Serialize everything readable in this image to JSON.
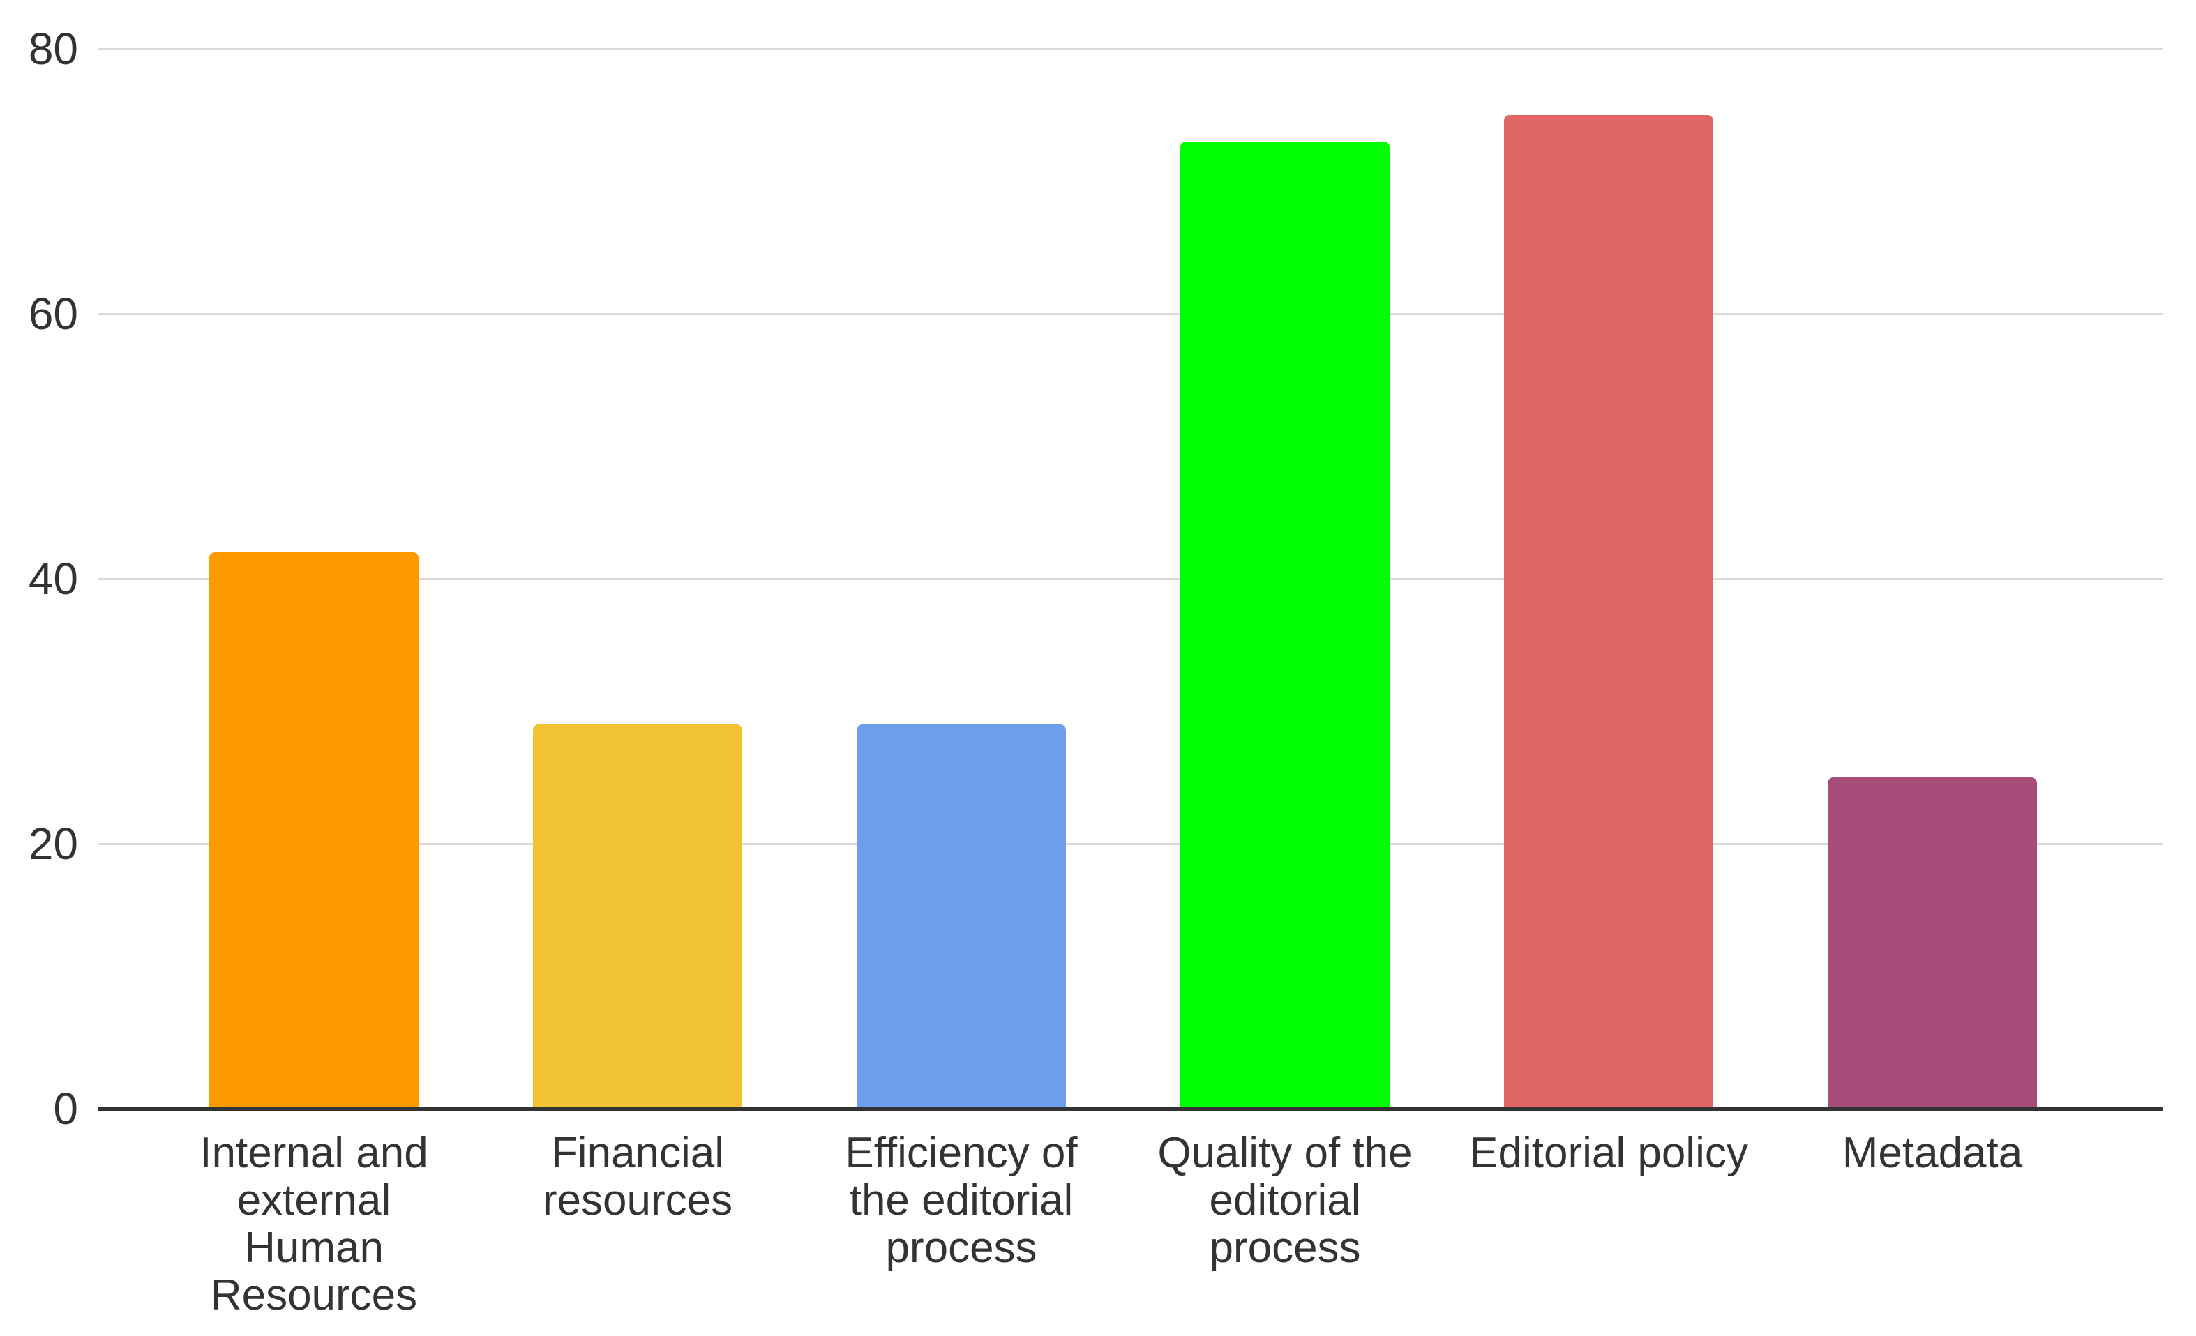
{
  "chart_data": {
    "type": "bar",
    "categories": [
      "Internal and external Human Resources",
      "Financial resources",
      "Efficiency of the editorial process",
      "Quality of the editorial process",
      "Editorial policy",
      "Metadata"
    ],
    "categories_wrapped": [
      [
        "Internal and",
        "external",
        "Human",
        "Resources"
      ],
      [
        "Financial",
        "resources"
      ],
      [
        "Efficiency of",
        "the editorial",
        "process"
      ],
      [
        "Quality of the",
        "editorial",
        "process"
      ],
      [
        "Editorial policy"
      ],
      [
        "Metadata"
      ]
    ],
    "values": [
      42,
      29,
      29,
      73,
      75,
      25
    ],
    "bar_colors": [
      "#FF9900",
      "#F1C232",
      "#6D9EEB",
      "#00FF00",
      "#E06666",
      "#A64D79"
    ],
    "title": "",
    "xlabel": "",
    "ylabel": "",
    "ylim": [
      0,
      80
    ],
    "yticks": [
      0,
      20,
      40,
      60,
      80
    ],
    "grid": true,
    "legend": "none",
    "background_color": "#ffffff",
    "gridline_color": "#d9d9d9",
    "axis_line_color": "#333333",
    "tick_label_color": "#333333",
    "category_label_color": "#333333"
  }
}
